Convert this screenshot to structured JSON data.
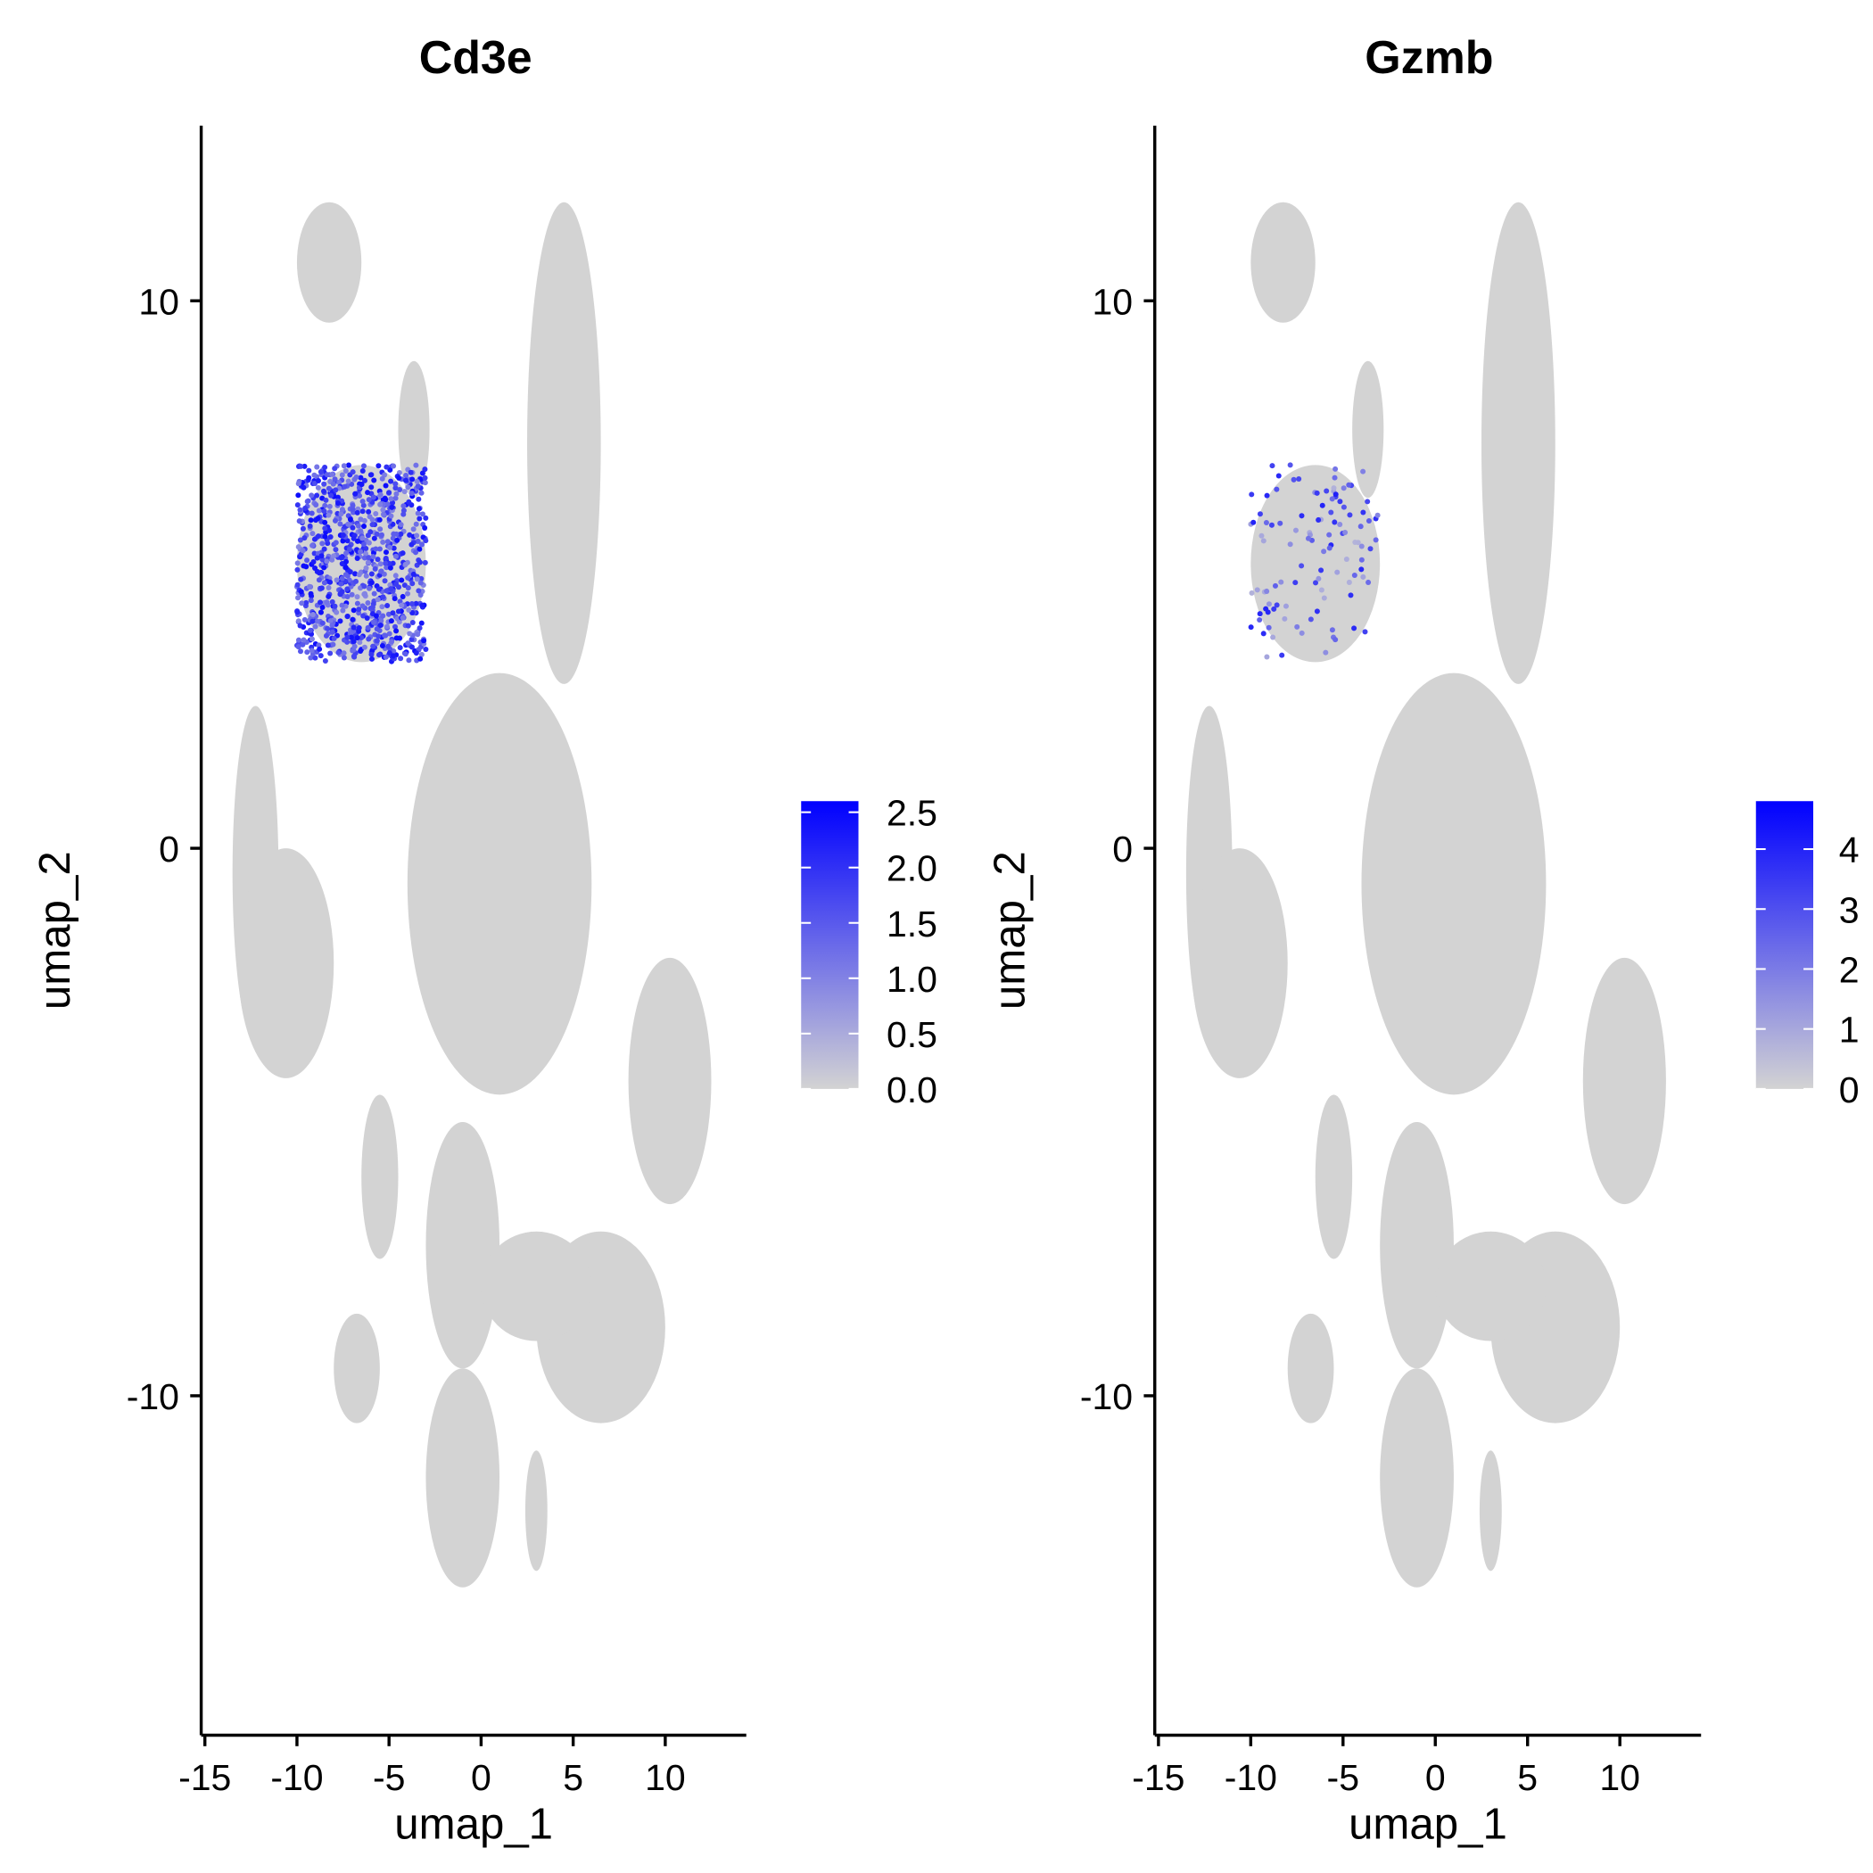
{
  "chart_data": [
    {
      "type": "scatter",
      "title": "Cd3e",
      "xlabel": "umap_1",
      "ylabel": "umap_2",
      "xlim": [
        -15.2,
        14.4
      ],
      "ylim": [
        -16.2,
        13.2
      ],
      "x_ticks": [
        -15,
        -10,
        -5,
        0,
        5,
        10
      ],
      "y_ticks": [
        10,
        0,
        -10
      ],
      "legend": {
        "position": "right",
        "ticks": [
          2.5,
          2.0,
          1.5,
          1.0,
          0.5,
          0.0
        ],
        "min": 0,
        "max": 2.6
      },
      "colors": {
        "low": "#d3d3d3",
        "high": "#0000ff"
      },
      "grid": false,
      "high_expression_region": {
        "x": [
          -10,
          -3
        ],
        "y": [
          3.4,
          7
        ]
      }
    },
    {
      "type": "scatter",
      "title": "Gzmb",
      "xlabel": "umap_1",
      "ylabel": "umap_2",
      "xlim": [
        -15.2,
        14.4
      ],
      "ylim": [
        -16.2,
        13.2
      ],
      "x_ticks": [
        -15,
        -10,
        -5,
        0,
        5,
        10
      ],
      "y_ticks": [
        10,
        0,
        -10
      ],
      "legend": {
        "position": "right",
        "ticks": [
          4,
          3,
          2,
          1,
          0
        ],
        "min": 0,
        "max": 4.8
      },
      "colors": {
        "low": "#d3d3d3",
        "high": "#0000ff"
      },
      "grid": false,
      "high_expression_region": {
        "x": [
          -10,
          -3
        ],
        "y": [
          3.4,
          7
        ]
      }
    }
  ],
  "clusters": [
    {
      "x": [
        -10,
        -6.5
      ],
      "y": [
        9.6,
        11.8
      ]
    },
    {
      "x": [
        -4.5,
        -2.8
      ],
      "y": [
        6.4,
        8.9
      ]
    },
    {
      "x": [
        -10,
        -3
      ],
      "y": [
        3.4,
        7
      ]
    },
    {
      "x": [
        -13.5,
        -11
      ],
      "y": [
        -3.5,
        2.6
      ]
    },
    {
      "x": [
        -13.2,
        -8
      ],
      "y": [
        -4.2,
        0
      ]
    },
    {
      "x": [
        2.5,
        6.5
      ],
      "y": [
        3,
        11.8
      ]
    },
    {
      "x": [
        -4,
        6
      ],
      "y": [
        -4.5,
        3.2
      ]
    },
    {
      "x": [
        -6.5,
        -4.5
      ],
      "y": [
        -7.5,
        -4.5
      ]
    },
    {
      "x": [
        -3,
        1
      ],
      "y": [
        -9.5,
        -5
      ]
    },
    {
      "x": [
        3,
        10
      ],
      "y": [
        -10.5,
        -7
      ]
    },
    {
      "x": [
        8,
        12.5
      ],
      "y": [
        -6.5,
        -2
      ]
    },
    {
      "x": [
        -8,
        -5.5
      ],
      "y": [
        -10.5,
        -8.5
      ]
    },
    {
      "x": [
        -3,
        1
      ],
      "y": [
        -13.5,
        -9.5
      ]
    },
    {
      "x": [
        2.4,
        3.6
      ],
      "y": [
        -13.2,
        -11
      ]
    },
    {
      "x": [
        0,
        6
      ],
      "y": [
        -9,
        -7
      ]
    }
  ]
}
